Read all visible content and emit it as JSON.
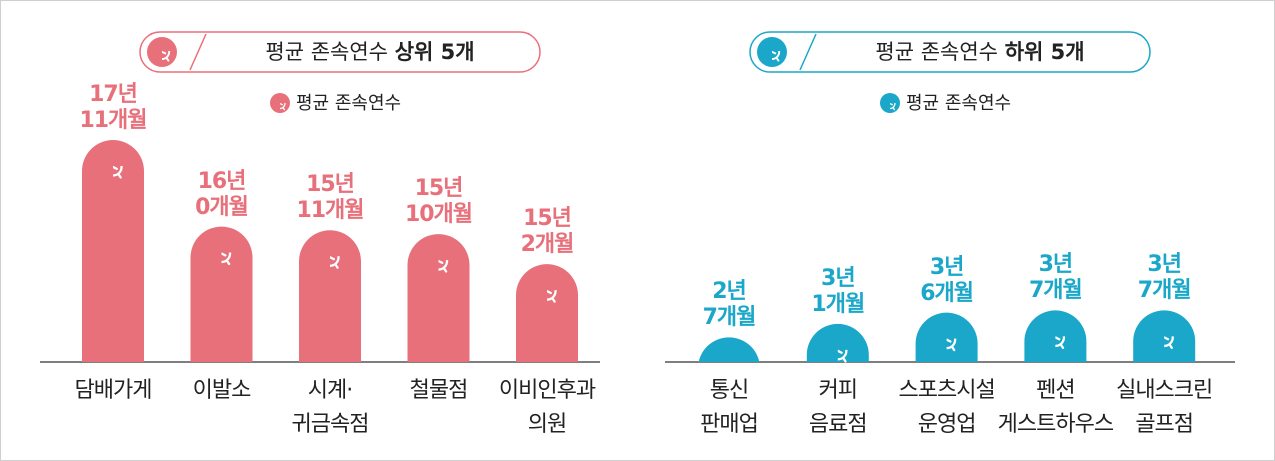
{
  "chart_data": [
    {
      "type": "bar",
      "title": "평균 존속연수",
      "title_emphasis": "상위 5개",
      "categories": [
        "담배가게",
        "이발소",
        "시계·\n귀금속점",
        "철물점",
        "이비인후과\n의원"
      ],
      "series": [
        {
          "name": "평균 존속연수",
          "color": "#e8707a",
          "values": [
            215,
            192,
            191,
            190,
            182
          ],
          "value_labels": [
            "17년\n11개월",
            "16년\n0개월",
            "15년\n11개월",
            "15년\n10개월",
            "15년\n2개월"
          ]
        }
      ],
      "ylim": [
        156,
        215
      ]
    },
    {
      "type": "bar",
      "title": "평균 존속연수",
      "title_emphasis": "하위 5개",
      "categories": [
        "통신\n판매업",
        "커피\n음료점",
        "스포츠시설\n운영업",
        "펜션\n게스트하우스",
        "실내스크린\n골프점"
      ],
      "series": [
        {
          "name": "평균 존속연수",
          "color": "#1aa7c9",
          "values": [
            31,
            37,
            42,
            43,
            43
          ],
          "value_labels": [
            "2년\n7개월",
            "3년\n1개월",
            "3년\n6개월",
            "3년\n7개월",
            "3년\n7개월"
          ]
        }
      ],
      "ylim": [
        20,
        119
      ]
    }
  ]
}
